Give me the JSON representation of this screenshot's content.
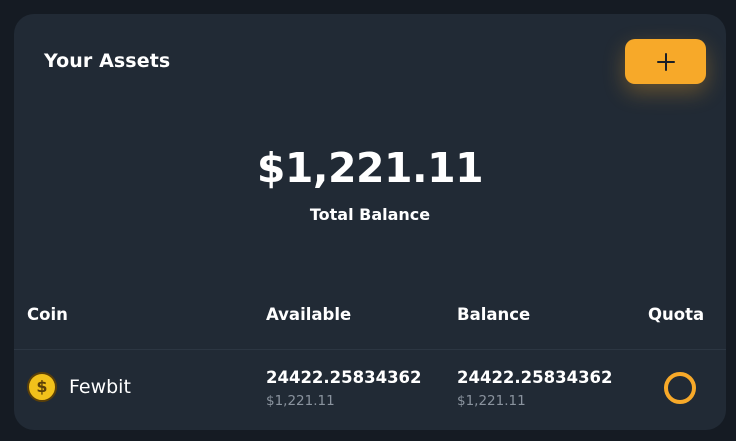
{
  "header": {
    "title": "Your Assets",
    "add_button_icon": "plus-icon"
  },
  "summary": {
    "total_amount": "$1,221.11",
    "total_label": "Total Balance"
  },
  "table": {
    "columns": [
      "Coin",
      "Available",
      "Balance",
      "Quota"
    ],
    "rows": [
      {
        "coin_icon": "dollar-coin-icon",
        "coin_icon_glyph": "$",
        "coin": "Fewbit",
        "available": "24422.25834362",
        "available_fiat": "$1,221.11",
        "balance": "24422.25834362",
        "balance_fiat": "$1,221.11",
        "quota_icon": "quota-ring-icon"
      }
    ]
  },
  "colors": {
    "accent": "#f7a929",
    "card_background": "#212a35",
    "page_background": "#151b23",
    "muted_text": "#8a939e"
  }
}
